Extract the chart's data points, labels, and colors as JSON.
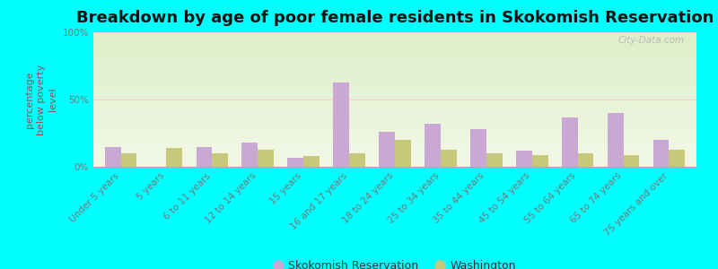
{
  "title": "Breakdown by age of poor female residents in Skokomish Reservation",
  "categories": [
    "Under 5 years",
    "5 years",
    "6 to 11 years",
    "12 to 14 years",
    "15 years",
    "16 and 17 years",
    "18 to 24 years",
    "25 to 34 years",
    "35 to 44 years",
    "45 to 54 years",
    "55 to 64 years",
    "65 to 74 years",
    "75 years and over"
  ],
  "skokomish_values": [
    15,
    0,
    15,
    18,
    7,
    63,
    26,
    32,
    28,
    12,
    37,
    40,
    20
  ],
  "washington_values": [
    10,
    14,
    10,
    13,
    8,
    10,
    20,
    13,
    10,
    9,
    10,
    9,
    13
  ],
  "skokomish_color": "#c9a8d4",
  "washington_color": "#c8c87a",
  "bg_top": "#ddeec8",
  "bg_bottom": "#f2f7e6",
  "outer_bg": "#00ffff",
  "ylabel": "percentage\nbelow poverty\nlevel",
  "ylim": [
    0,
    100
  ],
  "yticks": [
    0,
    50,
    100
  ],
  "ytick_labels": [
    "0%",
    "50%",
    "100%"
  ],
  "legend_skokomish": "Skokomish Reservation",
  "legend_washington": "Washington",
  "watermark": "City-Data.com",
  "title_fontsize": 13,
  "ylabel_fontsize": 8,
  "tick_fontsize": 7.5,
  "legend_fontsize": 9,
  "bar_width": 0.35,
  "ylabel_color": "#885555",
  "tick_color": "#777777",
  "grid50_color": "#ffcccc",
  "title_color": "#111111"
}
